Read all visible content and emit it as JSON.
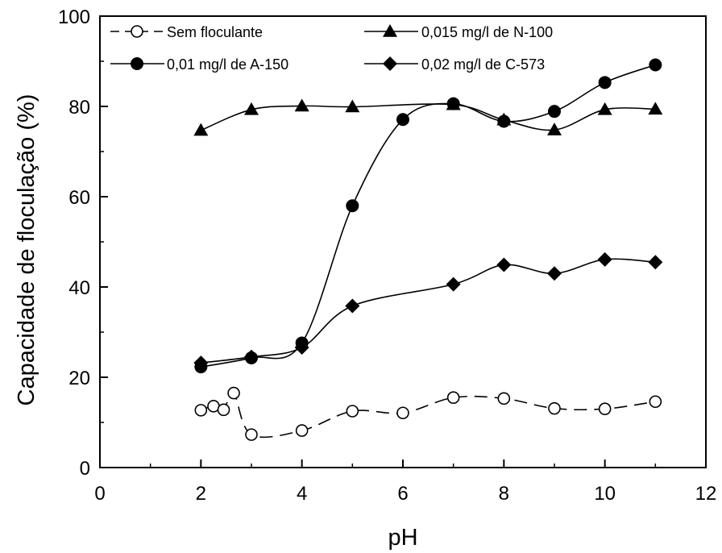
{
  "chart_data": {
    "type": "line",
    "xlabel": "pH",
    "ylabel": "Capacidade de floculação (%)",
    "xlim": [
      0,
      12
    ],
    "ylim": [
      0,
      100
    ],
    "x_ticks": [
      0,
      2,
      4,
      6,
      8,
      10,
      12
    ],
    "y_ticks": [
      0,
      20,
      40,
      60,
      80,
      100
    ],
    "grid": false,
    "legend_position": "top",
    "series": [
      {
        "name": "Sem floculante",
        "marker": "open-circle",
        "line": "dashed",
        "color": "#000000",
        "points": [
          [
            2,
            12.7
          ],
          [
            2.25,
            13.6
          ],
          [
            2.45,
            12.8
          ],
          [
            2.65,
            16.5
          ],
          [
            3,
            7.3
          ],
          [
            4,
            8.2
          ],
          [
            5,
            12.5
          ],
          [
            6,
            12.1
          ],
          [
            7,
            15.5
          ],
          [
            8,
            15.3
          ],
          [
            9,
            13.1
          ],
          [
            10,
            13.0
          ],
          [
            11,
            14.6
          ]
        ]
      },
      {
        "name": "0,015 mg/l de  N-100",
        "marker": "triangle",
        "line": "solid",
        "color": "#000000",
        "points": [
          [
            2,
            74.7
          ],
          [
            3,
            79.3
          ],
          [
            4,
            80.1
          ],
          [
            5,
            79.9
          ],
          [
            7,
            80.4
          ],
          [
            8,
            77.0
          ],
          [
            9,
            74.8
          ],
          [
            10,
            79.3
          ],
          [
            11,
            79.4
          ]
        ]
      },
      {
        "name": "0,01 mg/l de  A-150",
        "marker": "filled-circle",
        "line": "solid",
        "color": "#000000",
        "points": [
          [
            2,
            22.3
          ],
          [
            3,
            24.3
          ],
          [
            4,
            27.6
          ],
          [
            5,
            58.0
          ],
          [
            6,
            77.1
          ],
          [
            7,
            80.6
          ],
          [
            8,
            76.7
          ],
          [
            9,
            78.9
          ],
          [
            10,
            85.3
          ],
          [
            11,
            89.2
          ]
        ]
      },
      {
        "name": "0,02 mg/l de  C-573",
        "marker": "diamond",
        "line": "solid",
        "color": "#000000",
        "points": [
          [
            2,
            23.2
          ],
          [
            3,
            24.5
          ],
          [
            4,
            26.6
          ],
          [
            5,
            35.8
          ],
          [
            7,
            40.6
          ],
          [
            8,
            44.9
          ],
          [
            9,
            43.0
          ],
          [
            10,
            46.1
          ],
          [
            11,
            45.5
          ]
        ]
      }
    ]
  }
}
